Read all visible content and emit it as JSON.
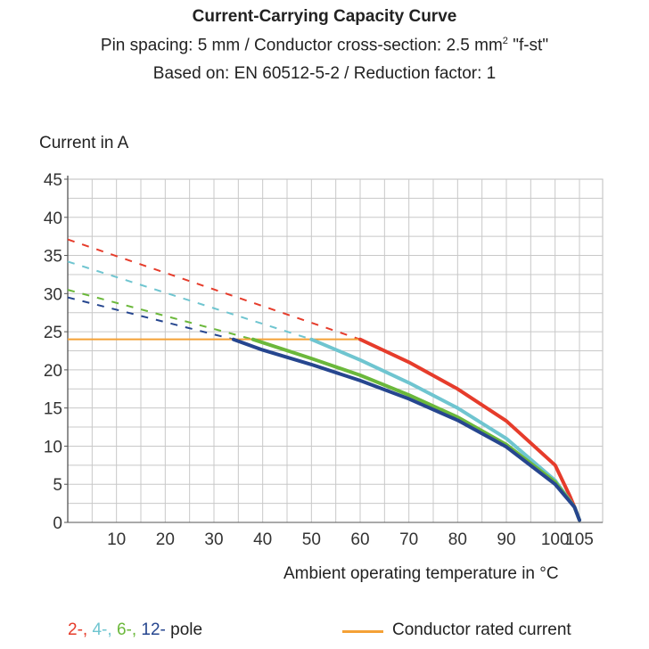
{
  "title": {
    "main": "Current-Carrying Capacity Curve",
    "line2_pre": "Pin spacing: 5 mm / Conductor cross-section: 2.5 mm",
    "line2_sup": "2",
    "line2_post": " \"f-st\"",
    "line3": "Based on: EN 60512-5-2 / Reduction factor: 1"
  },
  "legend": {
    "p2": "2-",
    "sep": ", ",
    "p4": "4-",
    "p6": "6-",
    "p12": "12-",
    "pole": " pole",
    "rated": "Conductor rated current"
  },
  "chart_data": {
    "type": "line",
    "title": "Current-Carrying Capacity Curve",
    "xlabel": "Ambient operating temperature in °C",
    "ylabel": "Current in A",
    "xlim": [
      0,
      105
    ],
    "ylim": [
      0,
      45
    ],
    "x_ticks": [
      "10",
      "20",
      "30",
      "40",
      "50",
      "60",
      "70",
      "80",
      "90",
      "100",
      "105"
    ],
    "y_ticks": [
      "0",
      "5",
      "10",
      "15",
      "20",
      "25",
      "30",
      "35",
      "40",
      "45"
    ],
    "grid": true,
    "colors": {
      "p2": "#e63c2b",
      "p4": "#6fc5d0",
      "p6": "#6bb83b",
      "p12": "#26468f",
      "rated": "#f4a136"
    },
    "rated_current": {
      "value": 24,
      "x_range": [
        0,
        60
      ]
    },
    "series": [
      {
        "name": "2-",
        "color_key": "p2",
        "dashed": {
          "x": [
            0,
            60
          ],
          "y": [
            37.1,
            24.0
          ]
        },
        "solid": {
          "x": [
            60,
            70,
            80,
            90,
            100,
            103,
            104,
            105
          ],
          "y": [
            24.0,
            21.0,
            17.5,
            13.3,
            7.5,
            3.5,
            2.0,
            0.3
          ]
        }
      },
      {
        "name": "4-",
        "color_key": "p4",
        "dashed": {
          "x": [
            0,
            50
          ],
          "y": [
            34.2,
            24.0
          ]
        },
        "solid": {
          "x": [
            50,
            60,
            70,
            80,
            90,
            100,
            104,
            105
          ],
          "y": [
            24.0,
            21.3,
            18.3,
            15.0,
            11.0,
            5.5,
            2.0,
            0.3
          ]
        }
      },
      {
        "name": "6-",
        "color_key": "p6",
        "dashed": {
          "x": [
            0,
            38
          ],
          "y": [
            30.5,
            24.0
          ]
        },
        "solid": {
          "x": [
            38,
            50,
            60,
            70,
            80,
            90,
            100,
            104,
            105
          ],
          "y": [
            24.0,
            21.5,
            19.3,
            16.7,
            13.8,
            10.2,
            5.3,
            2.0,
            0.3
          ]
        }
      },
      {
        "name": "12-",
        "color_key": "p12",
        "dashed": {
          "x": [
            0,
            34
          ],
          "y": [
            29.5,
            24.0
          ]
        },
        "solid": {
          "x": [
            34,
            40,
            50,
            60,
            70,
            80,
            90,
            100,
            104,
            105
          ],
          "y": [
            24.0,
            22.6,
            20.7,
            18.6,
            16.2,
            13.4,
            9.9,
            5.0,
            2.0,
            0.3
          ]
        }
      }
    ]
  }
}
